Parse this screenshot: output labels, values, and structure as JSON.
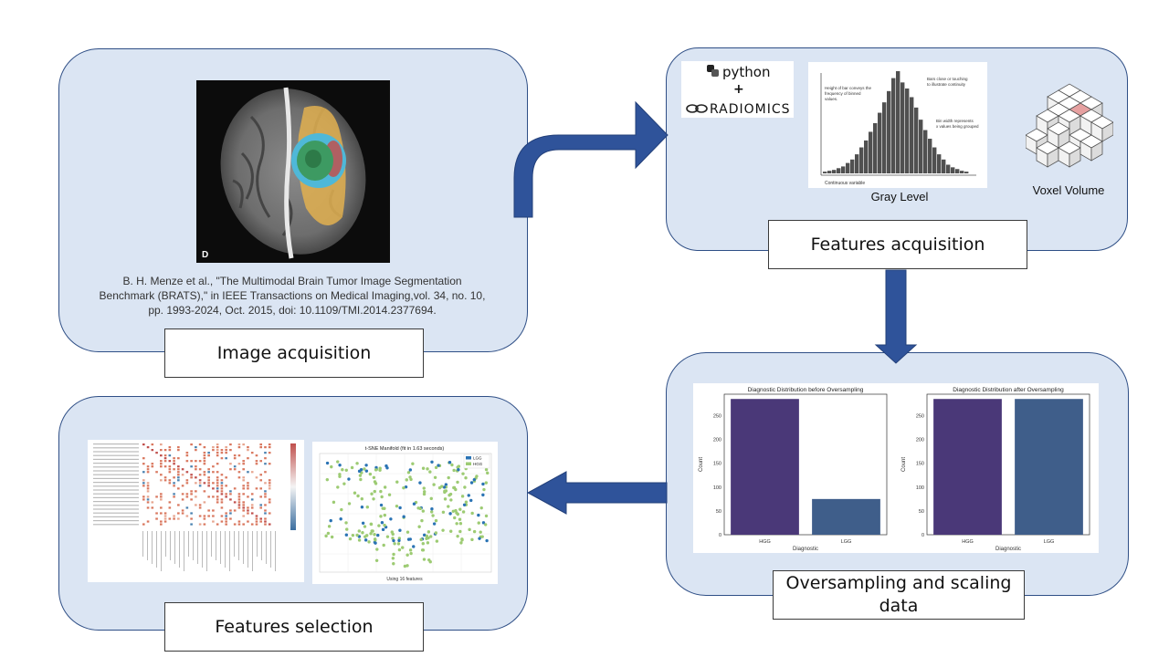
{
  "stages": {
    "image_acquisition": "Image acquisition",
    "features_acquisition": "Features acquisition",
    "oversampling": "Oversampling and scaling data",
    "features_selection": "Features selection"
  },
  "citation": {
    "line1": "B. H. Menze et al., \"The Multimodal Brain Tumor Image Segmentation",
    "line2": "Benchmark (BRATS),\" in IEEE Transactions on Medical Imaging,vol. 34, no. 10,",
    "line3": "pp. 1993-2024, Oct. 2015, doi: 10.1109/TMI.2014.2377694."
  },
  "mri": {
    "corner_letter": "D"
  },
  "logos": {
    "python": "python",
    "plus": "+",
    "radiomics": "RADIOMICS"
  },
  "histogram": {
    "caption": "Gray Level",
    "note1": "Height of bar conveys the frequency of binned values.",
    "note2": "Bars close or touching to illustrate continuity",
    "note3": "Bin width represents x values being grouped",
    "axis_label": "Continuous variable",
    "values": [
      2,
      3,
      4,
      6,
      8,
      12,
      16,
      22,
      30,
      38,
      48,
      58,
      70,
      82,
      95,
      110,
      118,
      105,
      98,
      88,
      76,
      62,
      50,
      40,
      30,
      22,
      16,
      10,
      7,
      5,
      3,
      2
    ]
  },
  "voxel": {
    "caption": "Voxel Volume"
  },
  "chart_data": [
    {
      "type": "bar",
      "title": "Diagnostic Distribution before Oversampling",
      "xlabel": "Diagnostic",
      "ylabel": "Count",
      "categories": [
        "HGG",
        "LGG"
      ],
      "values": [
        285,
        75
      ],
      "ylim": [
        0,
        295
      ],
      "yticks": [
        0,
        50,
        100,
        150,
        200,
        250
      ],
      "colors": [
        "#4a3878",
        "#3f5e8a"
      ]
    },
    {
      "type": "bar",
      "title": "Diagnostic Distribution after Oversampling",
      "xlabel": "Diagnostic",
      "ylabel": "Count",
      "categories": [
        "HGG",
        "LGG"
      ],
      "values": [
        285,
        285
      ],
      "ylim": [
        0,
        295
      ],
      "yticks": [
        0,
        50,
        100,
        150,
        200,
        250
      ],
      "colors": [
        "#4a3878",
        "#3f5e8a"
      ]
    },
    {
      "type": "scatter",
      "title": "t-SNE Manifold (fit in 1.63 seconds)",
      "subtitle": "Using 16 features",
      "legend": [
        "LGG",
        "HGG"
      ],
      "colors": [
        "#2a73b4",
        "#9dcb73"
      ]
    }
  ],
  "colors": {
    "panel_fill": "#dbe5f3",
    "panel_border": "#2f4f86",
    "arrow": "#2f539a"
  }
}
